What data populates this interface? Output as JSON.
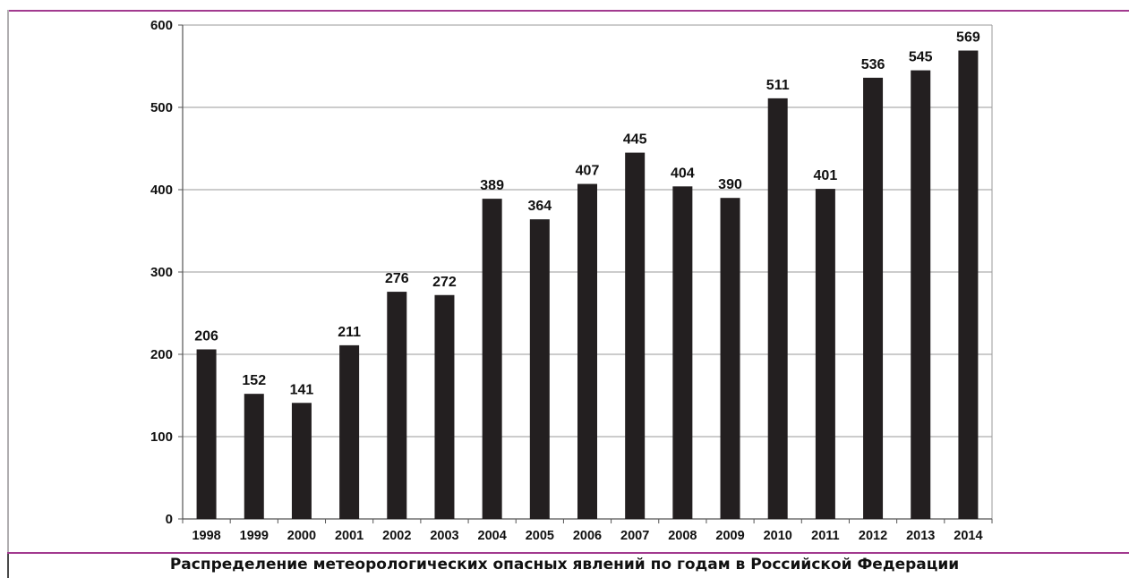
{
  "chart_data": {
    "type": "bar",
    "title": "",
    "xlabel": "",
    "ylabel": "",
    "categories": [
      "1998",
      "1999",
      "2000",
      "2001",
      "2002",
      "2003",
      "2004",
      "2005",
      "2006",
      "2007",
      "2008",
      "2009",
      "2010",
      "2011",
      "2012",
      "2013",
      "2014"
    ],
    "values": [
      206,
      152,
      141,
      211,
      276,
      272,
      389,
      364,
      407,
      445,
      404,
      390,
      511,
      401,
      536,
      545,
      569
    ],
    "ylim": [
      0,
      600
    ],
    "yticks": [
      "0",
      "100",
      "200",
      "300",
      "400",
      "500",
      "600"
    ],
    "grid": true,
    "bar_color": "#231f20"
  },
  "caption": "Распределение метеорологических опасных явлений по годам в Российской Федерации"
}
